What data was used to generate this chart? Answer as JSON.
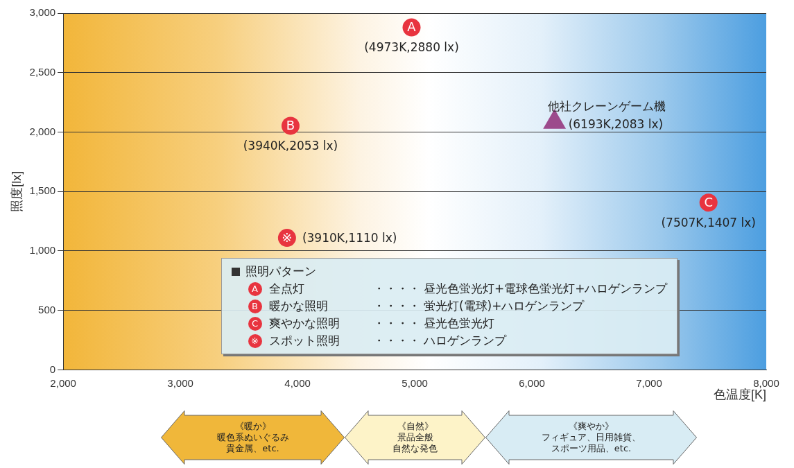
{
  "chart_data": {
    "type": "scatter",
    "xlabel": "色温度[K]",
    "ylabel": "照度[lx]",
    "legend_title": "照明パターン",
    "legend": "bottom",
    "grid": "y",
    "xlim": [
      2000,
      8000
    ],
    "ylim": [
      0,
      3000
    ],
    "xticks": [
      {
        "value": 2000,
        "label": "2,000"
      },
      {
        "value": 3000,
        "label": "3,000"
      },
      {
        "value": 4000,
        "label": "4,000"
      },
      {
        "value": 5000,
        "label": "5,000"
      },
      {
        "value": 6000,
        "label": "6,000"
      },
      {
        "value": 7000,
        "label": "7,000"
      },
      {
        "value": 8000,
        "label": "8,000"
      }
    ],
    "yticks": [
      0,
      500,
      {
        "value": 1000,
        "label": "1,000"
      },
      {
        "value": 1500,
        "label": "1,500"
      },
      {
        "value": 2000,
        "label": "2,000"
      },
      {
        "value": 2500,
        "label": "2,500"
      },
      {
        "value": 3000,
        "label": "3,000"
      }
    ],
    "series": [
      {
        "name": "全点灯",
        "color": "#e8343f",
        "marker": "circle",
        "x": [
          4973
        ],
        "values": [
          2880
        ],
        "value_labels": [
          "(4973K,2880 lx)"
        ]
      },
      {
        "name": "暖かな照明",
        "color": "#e8343f",
        "marker": "circle",
        "x": [
          3940
        ],
        "values": [
          2053
        ],
        "value_labels": [
          "(3940K,2053 lx)"
        ]
      },
      {
        "name": "爽やかな照明",
        "color": "#e8343f",
        "marker": "circle",
        "x": [
          7507
        ],
        "values": [
          1407
        ],
        "value_labels": [
          "(7507K,1407 lx)"
        ]
      },
      {
        "name": "スポット照明",
        "color": "#e8343f",
        "marker": "circle",
        "x": [
          3910
        ],
        "values": [
          1110
        ],
        "value_labels": [
          "(3910K,1110 lx)"
        ]
      },
      {
        "name": "他社クレーンゲーム機",
        "color": "#9c4a8c",
        "marker": "triangle",
        "x": [
          6193
        ],
        "values": [
          2083
        ],
        "value_labels": [
          "(6193K,2083 lx)"
        ]
      }
    ],
    "annotations": [
      {
        "text": "A",
        "x": 4973,
        "y": 2880
      },
      {
        "text": "B",
        "x": 3940,
        "y": 2053
      },
      {
        "text": "C",
        "x": 7507,
        "y": 1407
      },
      {
        "text": "※",
        "x": 3910,
        "y": 1110
      },
      "・・・・ 昼光色蛍光灯+電球色蛍光灯+ハロゲンランプ",
      "・・・・ 蛍光灯(電球)+ハロゲンランプ",
      "・・・・ 昼光色蛍光灯",
      "・・・・ ハロゲンランプ",
      "《暖か》",
      "暖色系ぬいぐるみ",
      "貴金属、etc.",
      "《自然》",
      "景品全般",
      "自然な発色",
      "《爽やか》",
      "フィギュア、日用雑貨、",
      "スポーツ用品、etc."
    ]
  }
}
